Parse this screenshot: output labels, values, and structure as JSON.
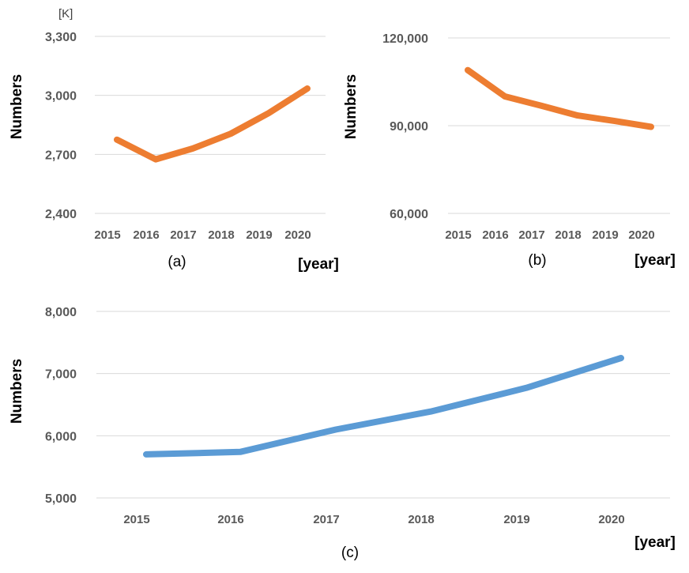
{
  "chart_data": [
    {
      "type": "line",
      "caption": "(a)",
      "unit": "[K]",
      "ylabel": "Numbers",
      "xlabel": "[year]",
      "categories": [
        "2015",
        "2016",
        "2017",
        "2018",
        "2019",
        "2020"
      ],
      "ylim": [
        2400,
        3300
      ],
      "yticks": [
        "2,400",
        "2,700",
        "3,000",
        "3,300"
      ],
      "color": "#ed7d31",
      "grid": true,
      "series": [
        {
          "values": [
            2775,
            2675,
            2730,
            2805,
            2910,
            3035
          ]
        }
      ]
    },
    {
      "type": "line",
      "caption": "(b)",
      "ylabel": "Numbers",
      "xlabel": "[year]",
      "categories": [
        "2015",
        "2016",
        "2017",
        "2018",
        "2019",
        "2020"
      ],
      "ylim": [
        60000,
        120000
      ],
      "yticks": [
        "60,000",
        "90,000",
        "120,000"
      ],
      "color": "#ed7d31",
      "grid": true,
      "series": [
        {
          "values": [
            109000,
            100000,
            96800,
            93500,
            91600,
            89600
          ]
        }
      ]
    },
    {
      "type": "line",
      "caption": "(c)",
      "ylabel": "Numbers",
      "xlabel": "[year]",
      "categories": [
        "2015",
        "2016",
        "2017",
        "2018",
        "2019",
        "2020"
      ],
      "ylim": [
        5000,
        8000
      ],
      "yticks": [
        "5,000",
        "6,000",
        "7,000",
        "8,000"
      ],
      "color": "#5b9bd5",
      "grid": true,
      "series": [
        {
          "values": [
            5700,
            5740,
            6100,
            6390,
            6770,
            7250
          ]
        }
      ]
    }
  ]
}
